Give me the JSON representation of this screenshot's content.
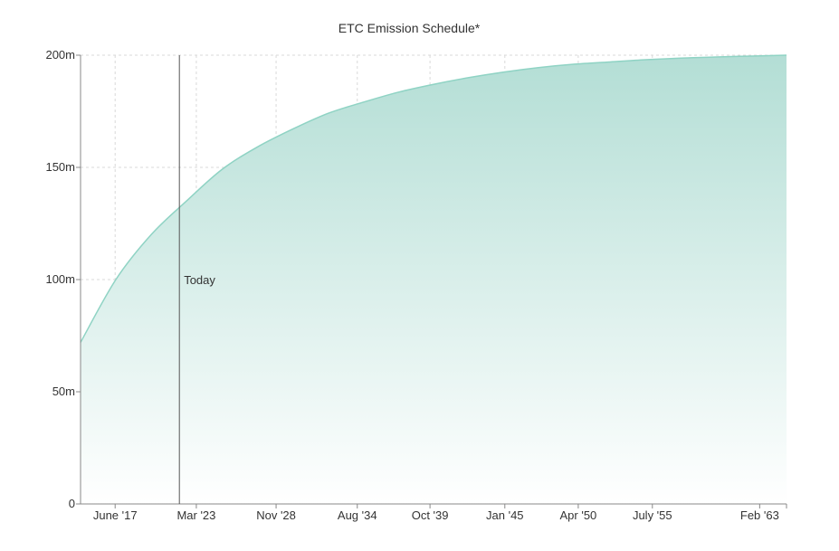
{
  "chart_data": {
    "type": "area",
    "title": "ETC Emission Schedule*",
    "xlabel": "",
    "ylabel": "",
    "grid": true,
    "ylim": [
      0,
      200
    ],
    "xlim": [
      2015.0,
      2065.0
    ],
    "x_tick_labels": [
      "June '17",
      "Mar '23",
      "Nov '28",
      "Aug '34",
      "Oct '39",
      "Jan '45",
      "Apr '50",
      "July '55",
      "Feb '63"
    ],
    "x_tick_dates": [
      2017.45,
      2023.2,
      2028.85,
      2034.6,
      2039.75,
      2045.05,
      2050.25,
      2055.5,
      2063.1
    ],
    "y_tick_labels": [
      "0",
      "50m",
      "100m",
      "150m",
      "200m"
    ],
    "y_tick_values": [
      0,
      50,
      100,
      150,
      200
    ],
    "series": [
      {
        "x": [
          2015.0,
          2017.5,
          2020.0,
          2022.5,
          2025.0,
          2027.5,
          2030.0,
          2032.5,
          2035.0,
          2037.5,
          2040.0,
          2042.5,
          2045.0,
          2047.5,
          2050.0,
          2052.5,
          2055.0,
          2057.5,
          2060.0,
          2062.5,
          2065.0
        ],
        "y": [
          72,
          100,
          120,
          135,
          149,
          159,
          167,
          174,
          179,
          183.5,
          187,
          190,
          192.5,
          194.5,
          196,
          197,
          198,
          198.7,
          199.2,
          199.6,
          200
        ]
      }
    ],
    "annotations": [
      {
        "label": "Today",
        "x": 2022.0
      }
    ],
    "colors": {
      "line": "#8fd3c4",
      "fill_top": "#b3ded5",
      "fill_bottom": "#ffffff",
      "today_line": "#555555"
    }
  }
}
